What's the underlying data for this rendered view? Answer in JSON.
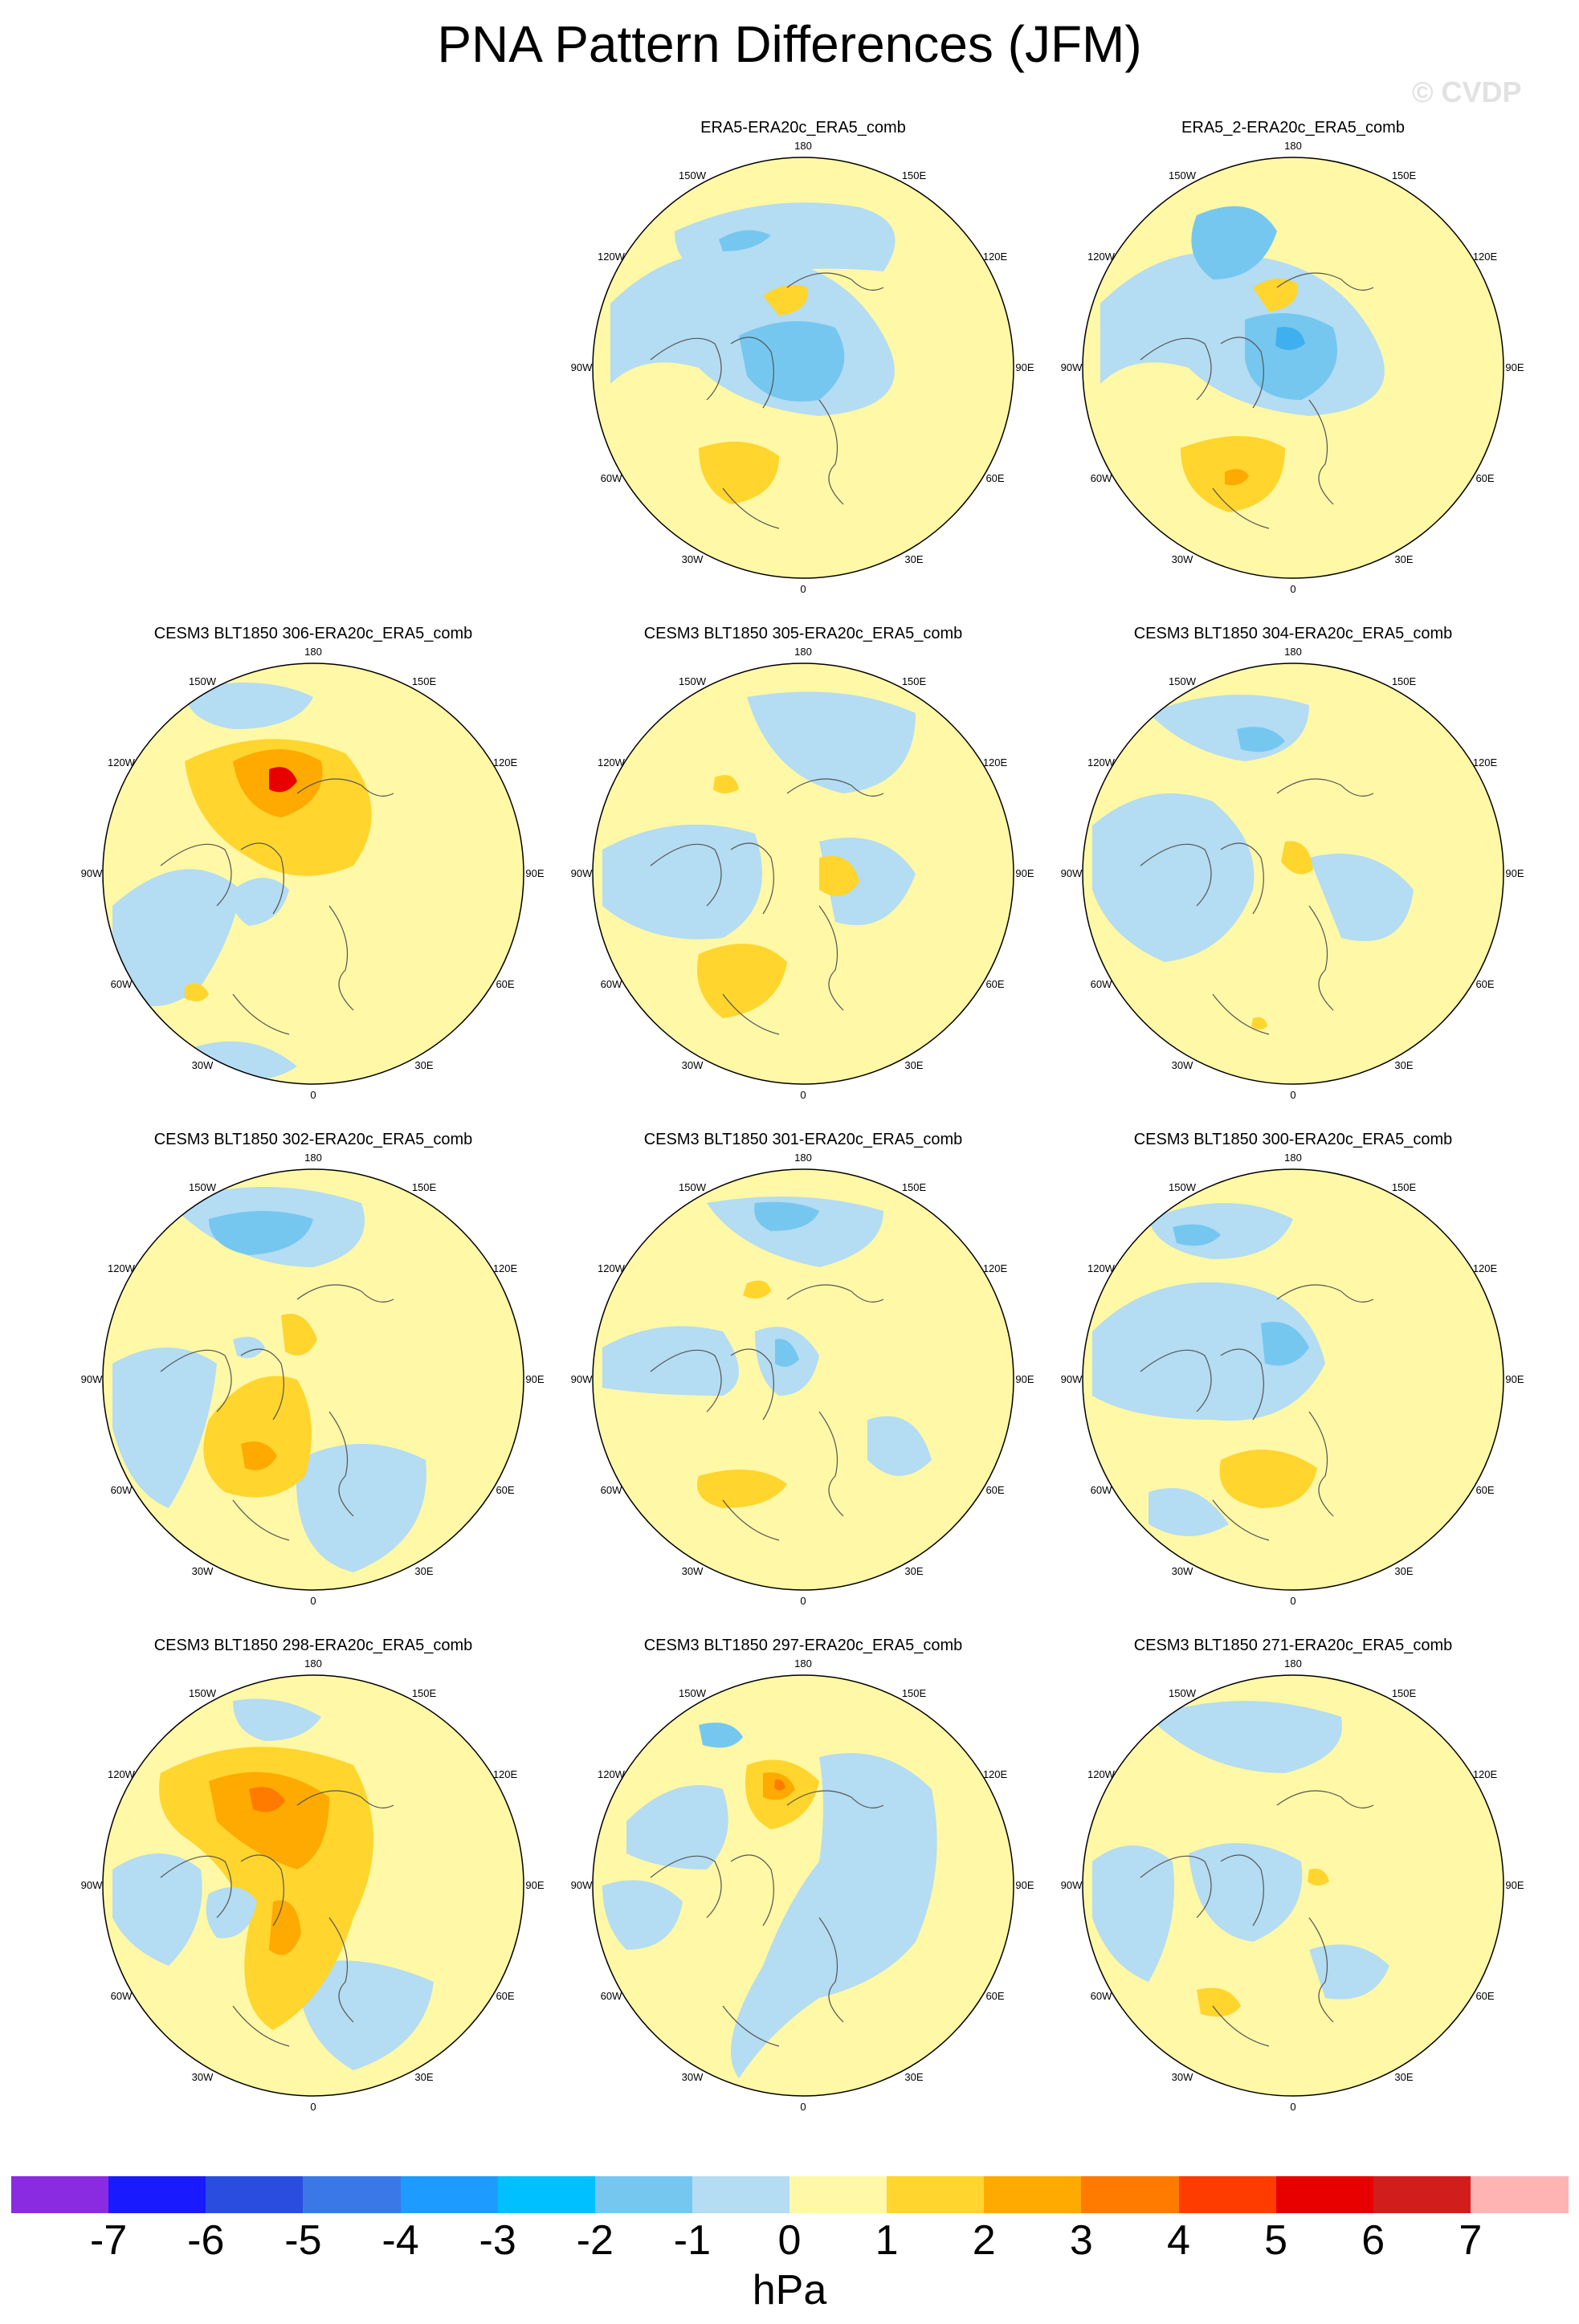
{
  "title": "PNA Pattern Differences (JFM)",
  "watermark": "© CVDP",
  "lon_labels": [
    "180",
    "150E",
    "120E",
    "90E",
    "60E",
    "30E",
    "0",
    "30W",
    "60W",
    "90W",
    "120W",
    "150W"
  ],
  "panels": [
    {
      "row": 0,
      "col": 1,
      "title": "ERA5-ERA20c_ERA5_comb"
    },
    {
      "row": 0,
      "col": 2,
      "title": "ERA5_2-ERA20c_ERA5_comb"
    },
    {
      "row": 1,
      "col": 0,
      "title": "CESM3 BLT1850 306-ERA20c_ERA5_comb"
    },
    {
      "row": 1,
      "col": 1,
      "title": "CESM3 BLT1850 305-ERA20c_ERA5_comb"
    },
    {
      "row": 1,
      "col": 2,
      "title": "CESM3 BLT1850 304-ERA20c_ERA5_comb"
    },
    {
      "row": 2,
      "col": 0,
      "title": "CESM3 BLT1850 302-ERA20c_ERA5_comb"
    },
    {
      "row": 2,
      "col": 1,
      "title": "CESM3 BLT1850 301-ERA20c_ERA5_comb"
    },
    {
      "row": 2,
      "col": 2,
      "title": "CESM3 BLT1850 300-ERA20c_ERA5_comb"
    },
    {
      "row": 3,
      "col": 0,
      "title": "CESM3 BLT1850 298-ERA20c_ERA5_comb"
    },
    {
      "row": 3,
      "col": 1,
      "title": "CESM3 BLT1850 297-ERA20c_ERA5_comb"
    },
    {
      "row": 3,
      "col": 2,
      "title": "CESM3 BLT1850 271-ERA20c_ERA5_comb"
    }
  ],
  "colorbar": {
    "colors": [
      "#8a2be2",
      "#1a1aff",
      "#2a4de0",
      "#3b78e7",
      "#1e9bff",
      "#00c0ff",
      "#75c7f0",
      "#b4dcf2",
      "#fff8a6",
      "#ffd52e",
      "#ffaa00",
      "#ff7b00",
      "#ff3c00",
      "#e80000",
      "#d21d1d",
      "#ffb4b4"
    ],
    "labels": [
      "-7",
      "-6",
      "-5",
      "-4",
      "-3",
      "-2",
      "-1",
      "0",
      "1",
      "2",
      "3",
      "4",
      "5",
      "6",
      "7"
    ],
    "units": "hPa"
  }
}
